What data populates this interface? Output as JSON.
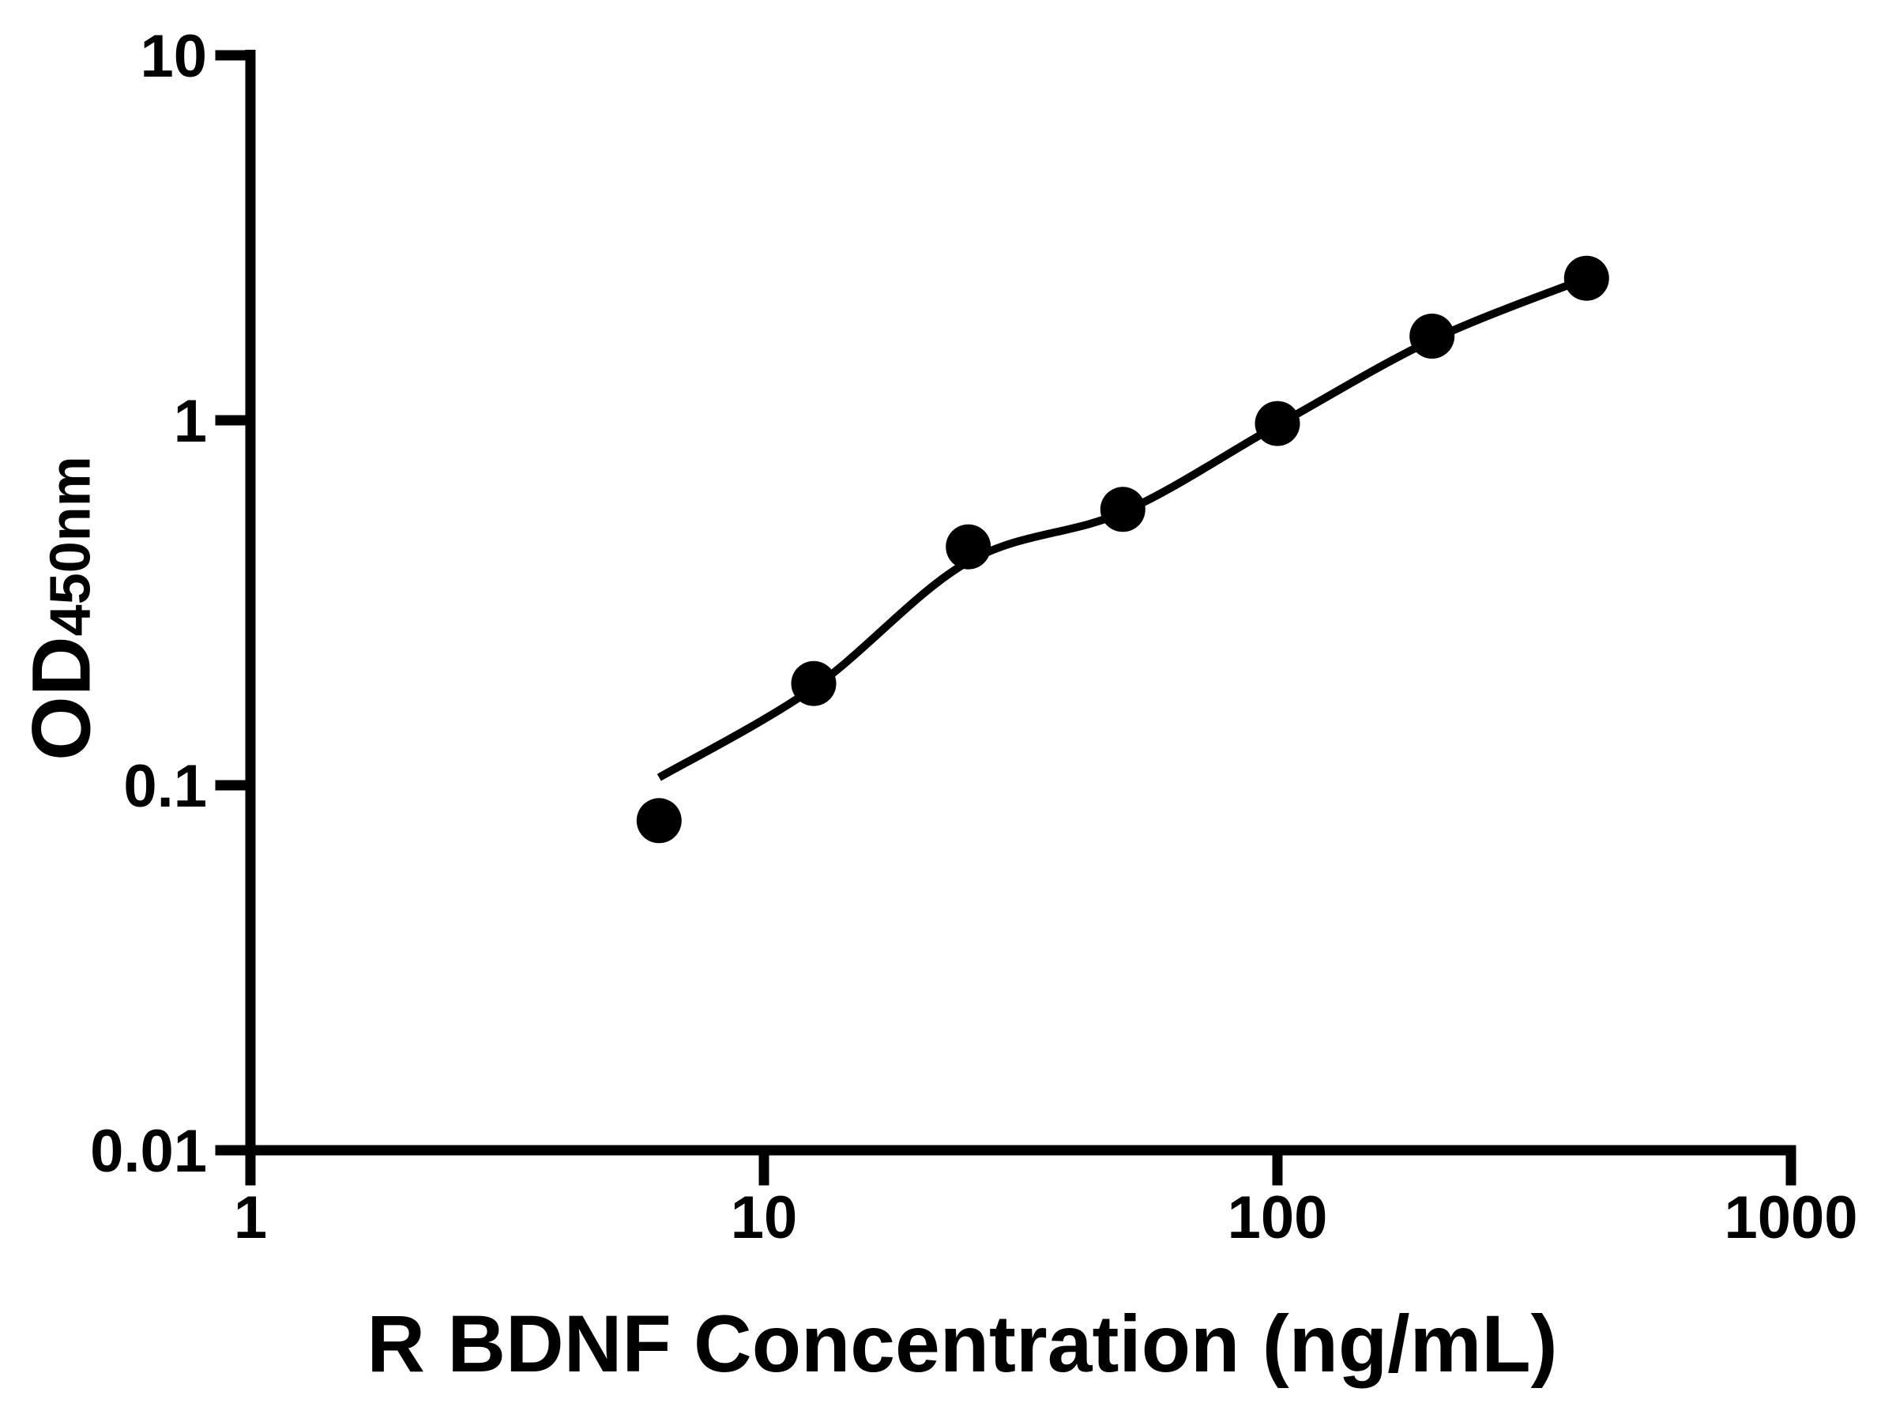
{
  "figure": {
    "background": "#ffffff",
    "ink_color": "#000000"
  },
  "chart_data": {
    "type": "scatter",
    "title": "",
    "xlabel": "R BDNF Concentration (ng/mL)",
    "ylabel": "OD450nm",
    "ylabel_main": "OD",
    "ylabel_sub": "450nm",
    "x_scale": "log",
    "y_scale": "log",
    "xlim": [
      1,
      1000
    ],
    "ylim": [
      0.01,
      10
    ],
    "x_tick_labels": [
      "1",
      "10",
      "100",
      "1000"
    ],
    "y_tick_labels": [
      "0.01",
      "0.1",
      "1",
      "10"
    ],
    "grid": false,
    "legend_position": "none",
    "series": [
      {
        "name": "standard points",
        "type": "scatter",
        "marker": "circle",
        "color": "#000000",
        "x": [
          6.25,
          12.5,
          25,
          50,
          100,
          200,
          400
        ],
        "y": [
          0.08,
          0.19,
          0.45,
          0.57,
          0.98,
          1.7,
          2.45
        ]
      },
      {
        "name": "fitted curve",
        "type": "line",
        "color": "#000000",
        "x": [
          6.25,
          12.5,
          25,
          50,
          100,
          200,
          400
        ],
        "y": [
          0.105,
          0.185,
          0.41,
          0.56,
          0.97,
          1.66,
          2.45
        ]
      }
    ]
  }
}
